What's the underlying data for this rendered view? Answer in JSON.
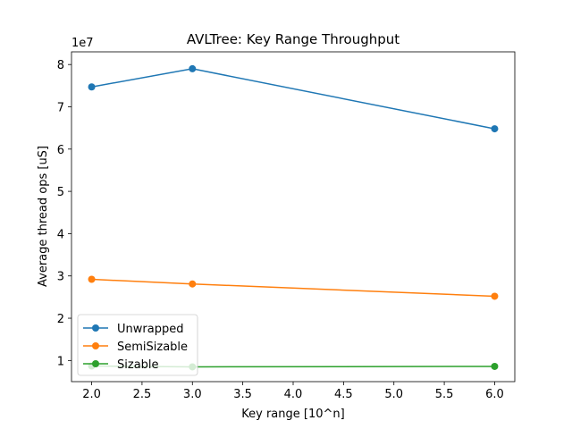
{
  "chart_data": {
    "type": "line",
    "title": "AVLTree: Key Range Throughput",
    "xlabel": "Key range [10^n]",
    "ylabel": "Average thread ops [uS]",
    "y_offset_label": "1e7",
    "x": [
      2.0,
      3.0,
      6.0
    ],
    "xlim": [
      1.8,
      6.2
    ],
    "ylim": [
      5000000,
      83000000
    ],
    "xticks": [
      2.0,
      2.5,
      3.0,
      3.5,
      4.0,
      4.5,
      5.0,
      5.5,
      6.0
    ],
    "xtick_labels": [
      "2.0",
      "2.5",
      "3.0",
      "3.5",
      "4.0",
      "4.5",
      "5.0",
      "5.5",
      "6.0"
    ],
    "yticks": [
      10000000,
      20000000,
      30000000,
      40000000,
      50000000,
      60000000,
      70000000,
      80000000
    ],
    "ytick_labels": [
      "1",
      "2",
      "3",
      "4",
      "5",
      "6",
      "7",
      "8"
    ],
    "grid": false,
    "legend_position": "lower-left",
    "series": [
      {
        "name": "Unwrapped",
        "color": "#1f77b4",
        "values": [
          74700000,
          79000000,
          64800000
        ]
      },
      {
        "name": "SemiSizable",
        "color": "#ff7f0e",
        "values": [
          29200000,
          28100000,
          25200000
        ]
      },
      {
        "name": "Sizable",
        "color": "#2ca02c",
        "values": [
          8700000,
          8500000,
          8600000
        ]
      }
    ]
  }
}
